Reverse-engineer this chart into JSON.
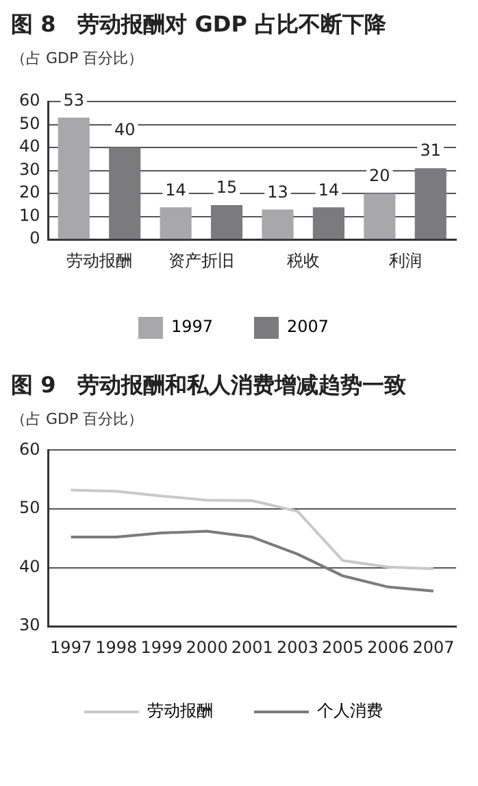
{
  "chart_data": [
    {
      "type": "bar",
      "title": "图 8　劳动报酬对 GDP 占比不断下降",
      "ylabel": "（占 GDP 百分比）",
      "categories": [
        "劳动报酬",
        "资产折旧",
        "税收",
        "利润"
      ],
      "series": [
        {
          "name": "1997",
          "color": "#a8a8aa",
          "values": [
            53,
            14,
            13,
            20
          ]
        },
        {
          "name": "2007",
          "color": "#7b7b7d",
          "values": [
            40,
            15,
            14,
            31
          ]
        }
      ],
      "ylim": [
        0,
        60
      ],
      "yticks": [
        0,
        10,
        20,
        30,
        40,
        50,
        60
      ],
      "grid": "y",
      "legend": "bottom",
      "data_labels": true
    },
    {
      "type": "line",
      "title": "图 9　劳动报酬和私人消费增减趋势一致",
      "ylabel": "（占 GDP 百分比）",
      "categories": [
        "1997",
        "1998",
        "1999",
        "2000",
        "2001",
        "2003",
        "2005",
        "2006",
        "2007"
      ],
      "series": [
        {
          "name": "劳动报酬",
          "color": "#c8c8c8",
          "values": [
            53.2,
            53.0,
            52.2,
            51.5,
            51.4,
            49.6,
            41.2,
            40.1,
            39.8
          ]
        },
        {
          "name": "个人消费",
          "color": "#7b7b7b",
          "values": [
            45.2,
            45.2,
            45.9,
            46.2,
            45.2,
            42.3,
            38.6,
            36.7,
            36.0
          ]
        }
      ],
      "ylim": [
        30,
        60
      ],
      "yticks": [
        30,
        40,
        50,
        60
      ],
      "grid": "y",
      "legend": "bottom",
      "marker": "none"
    }
  ]
}
